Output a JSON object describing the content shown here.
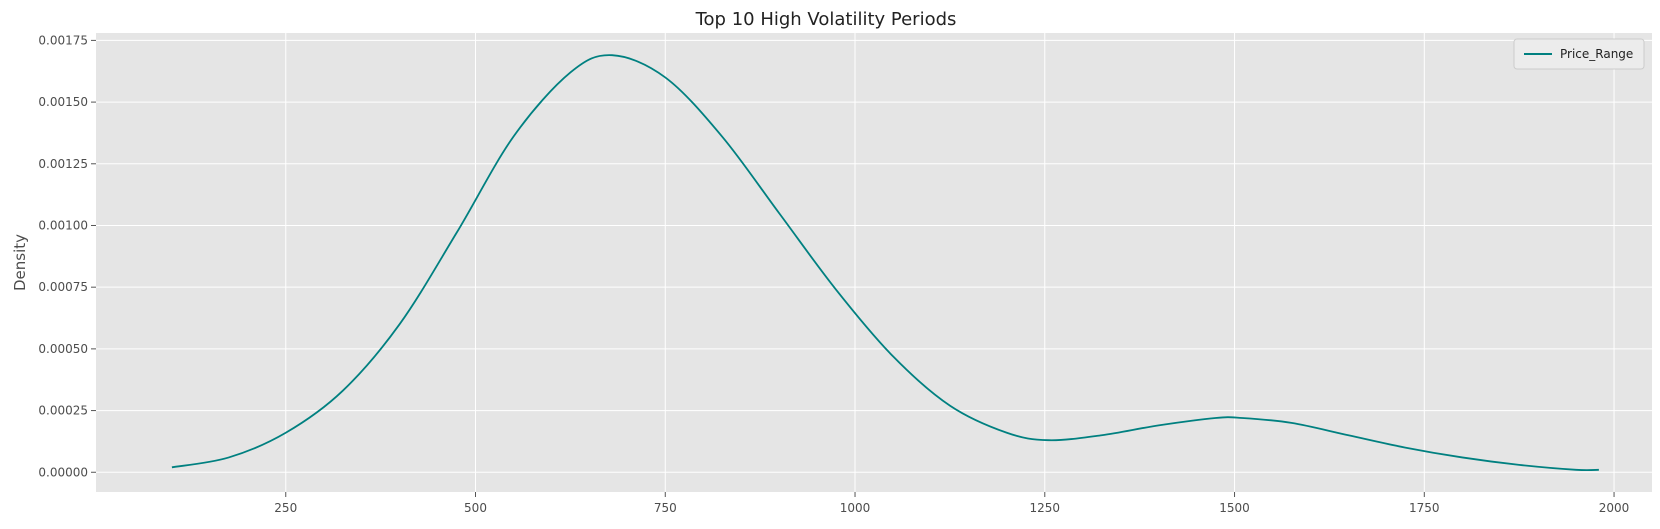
{
  "chart_data": {
    "type": "line",
    "title": "Top 10 High Volatility Periods",
    "xlabel": "",
    "ylabel": "Density",
    "xlim": [
      0,
      2050
    ],
    "ylim": [
      -8e-05,
      0.00178
    ],
    "xticks": [
      250,
      500,
      750,
      1000,
      1250,
      1500,
      1750,
      2000
    ],
    "xtick_labels": [
      "250",
      "500",
      "750",
      "1000",
      "1250",
      "1500",
      "1750",
      "2000"
    ],
    "yticks": [
      0.0,
      0.00025,
      0.0005,
      0.00075,
      0.001,
      0.00125,
      0.0015,
      0.00175
    ],
    "ytick_labels": [
      "0.00000",
      "0.00025",
      "0.00050",
      "0.00075",
      "0.00100",
      "0.00125",
      "0.00150",
      "0.00175"
    ],
    "grid": true,
    "legend_position": "top-right",
    "background": "#e5e5e5",
    "series": [
      {
        "name": "Price_Range",
        "color": "#008080",
        "x": [
          100,
          175,
          250,
          325,
          400,
          475,
          550,
          625,
          680,
          750,
          825,
          900,
          975,
          1050,
          1125,
          1200,
          1255,
          1325,
          1400,
          1475,
          1510,
          1575,
          1650,
          1725,
          1800,
          1875,
          1950,
          1980
        ],
        "y": [
          2e-05,
          6e-05,
          0.00016,
          0.00033,
          0.0006,
          0.00097,
          0.00136,
          0.00162,
          0.00169,
          0.0016,
          0.00136,
          0.00105,
          0.00074,
          0.00047,
          0.00027,
          0.00016,
          0.00013,
          0.00015,
          0.00019,
          0.00022,
          0.00022,
          0.0002,
          0.00015,
          0.0001,
          6e-05,
          3e-05,
          1e-05,
          1e-05
        ]
      }
    ]
  }
}
